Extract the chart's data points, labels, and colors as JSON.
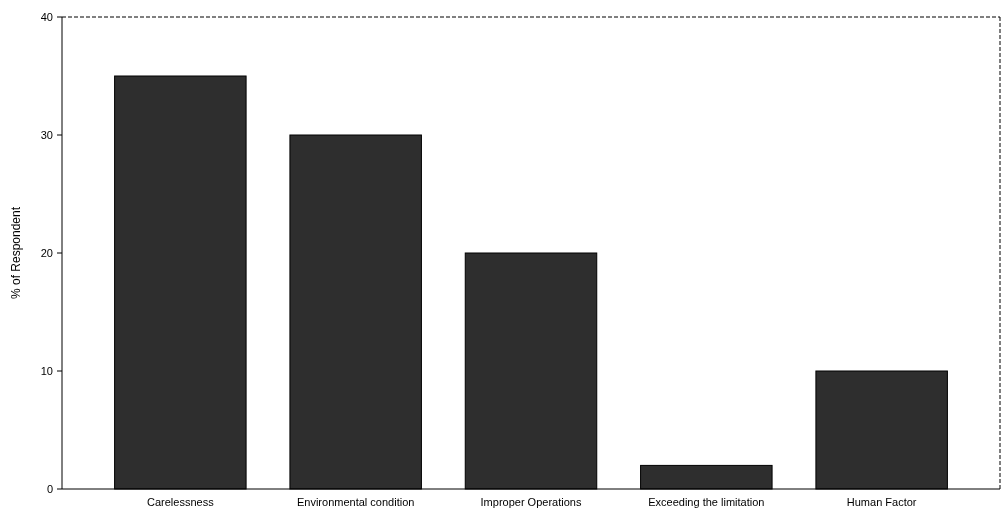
{
  "chart_data": {
    "type": "bar",
    "ylabel": "% of Respondent",
    "categories": [
      "Carelessness",
      "Environmental condition",
      "Improper Operations",
      "Exceeding the limitation",
      "Human Factor"
    ],
    "values": [
      35,
      30,
      20,
      2,
      10
    ],
    "color": "#2e2e2e",
    "ylim": [
      0,
      40
    ],
    "yticks": [
      0,
      10,
      20,
      30,
      40
    ],
    "grid": false
  }
}
